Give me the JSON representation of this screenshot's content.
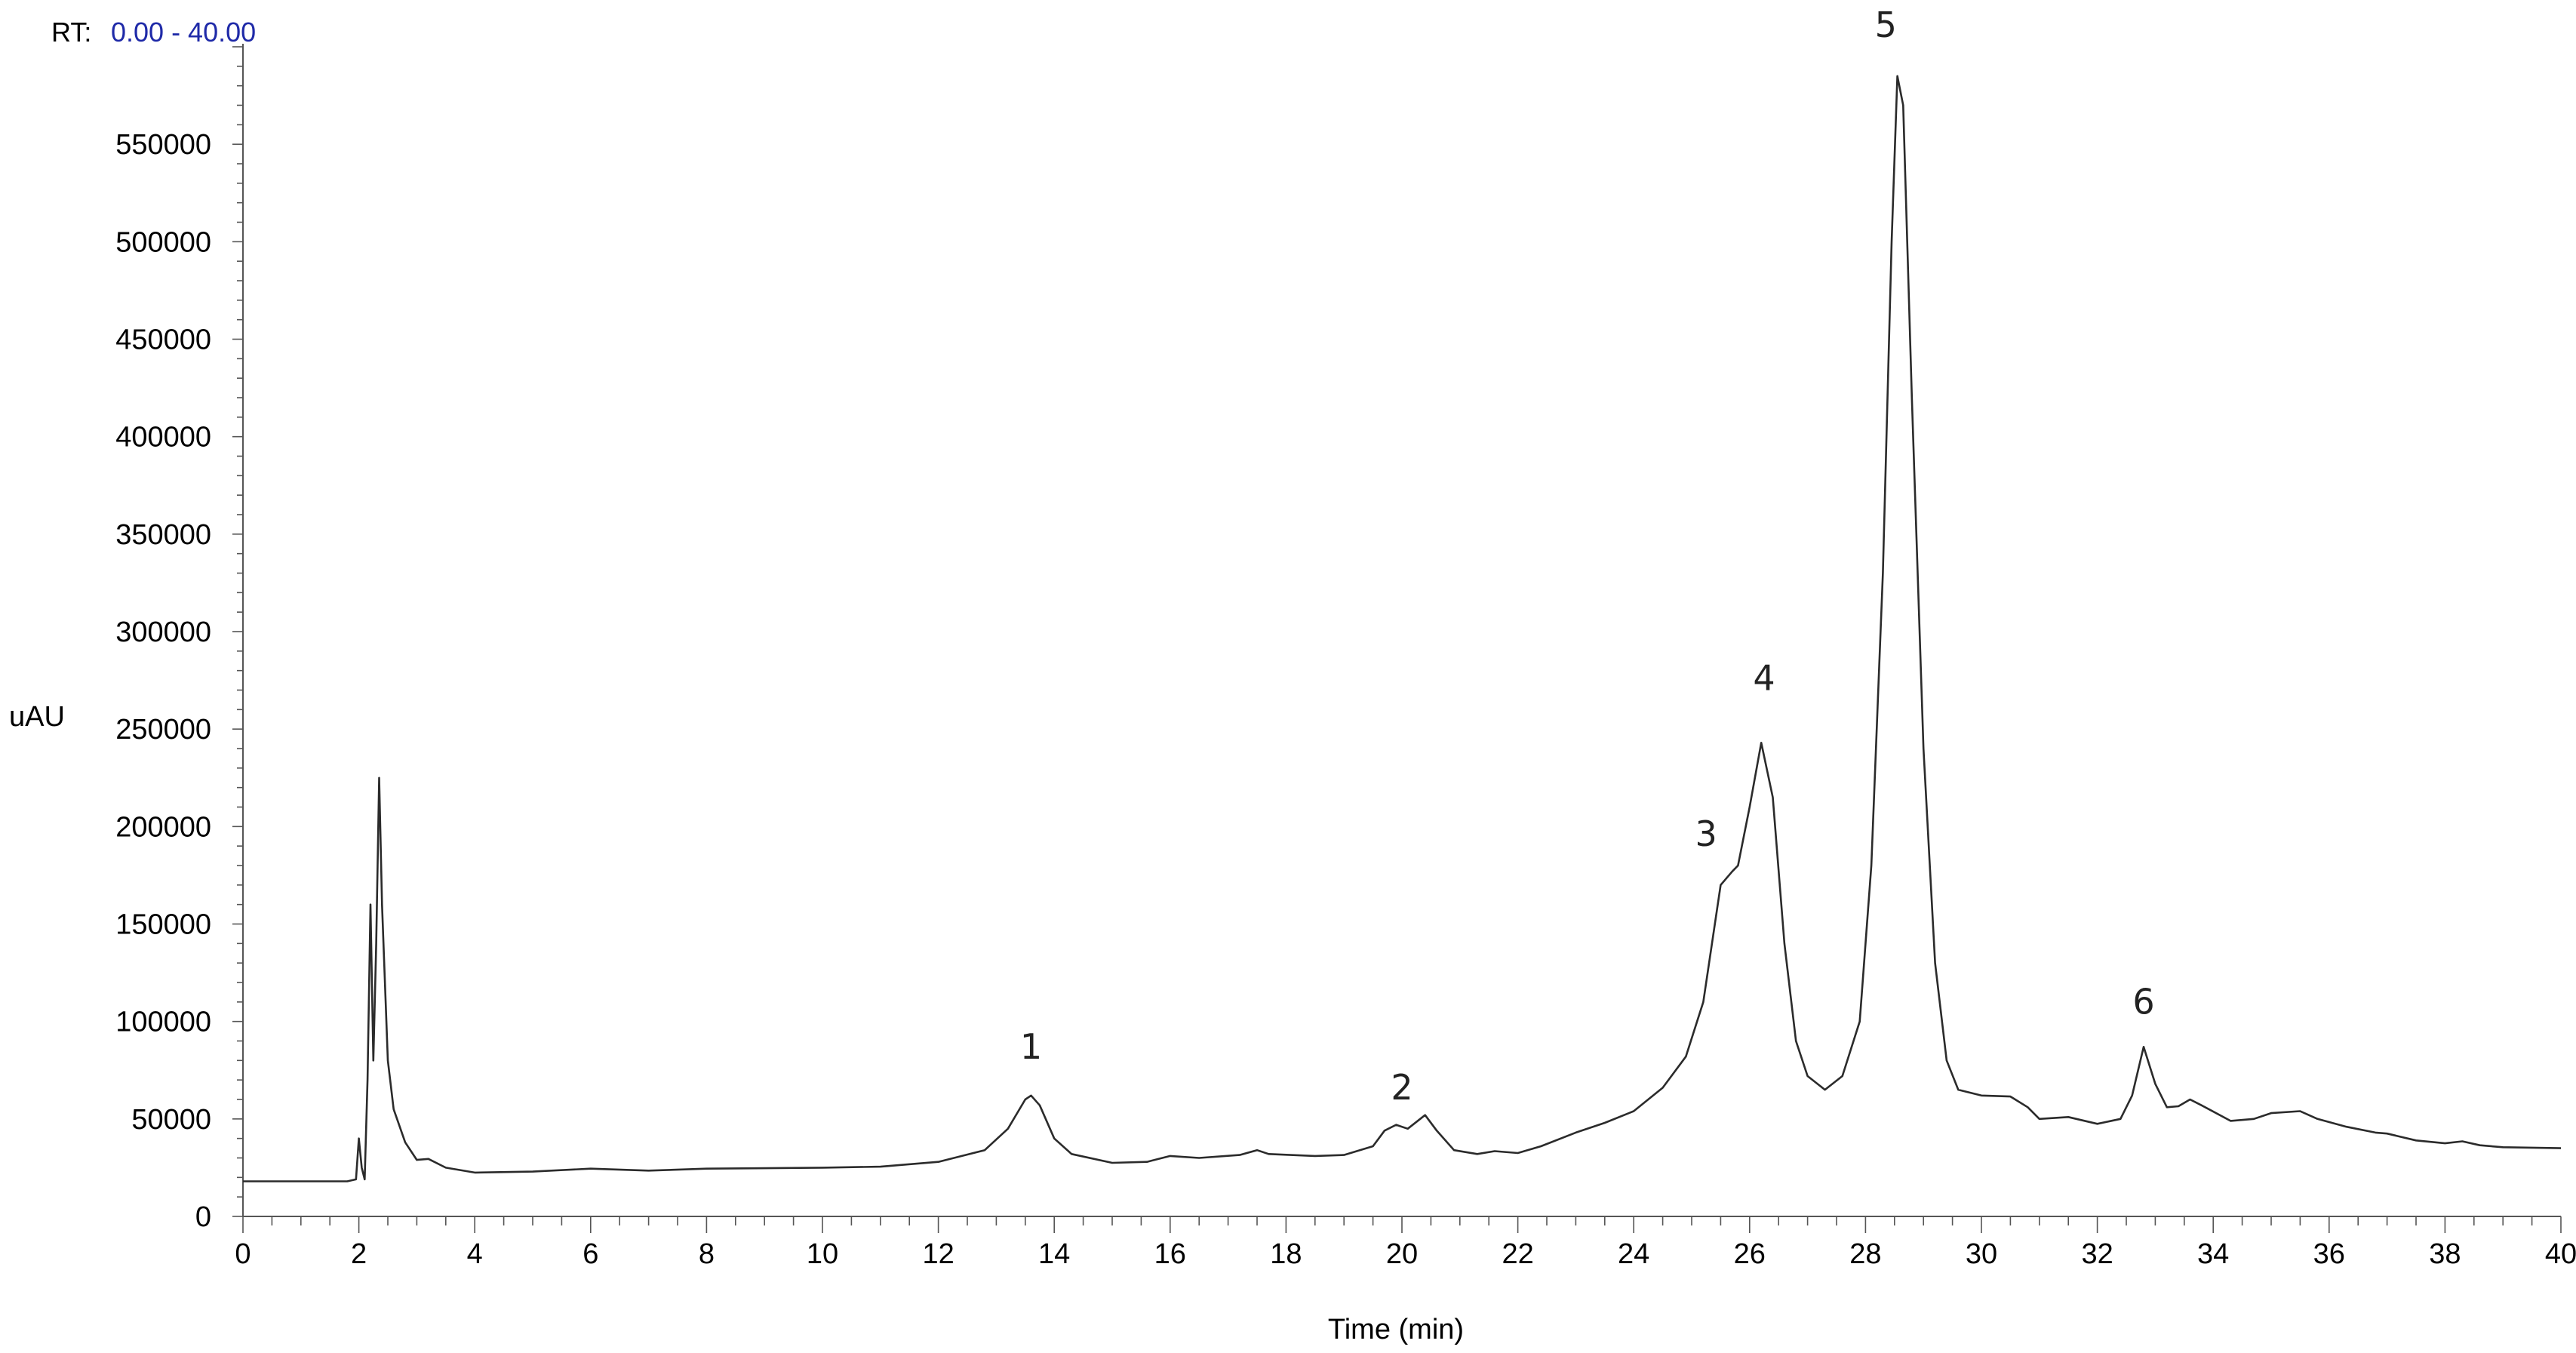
{
  "chart_data": {
    "type": "line",
    "rt_prefix": "RT:",
    "rt_range_text": "0.00 - 40.00",
    "xlabel": "Time (min)",
    "ylabel": "uAU",
    "xlim": [
      0,
      40
    ],
    "ylim": [
      0,
      600000
    ],
    "x_ticks": [
      0,
      2,
      4,
      6,
      8,
      10,
      12,
      14,
      16,
      18,
      20,
      22,
      24,
      26,
      28,
      30,
      32,
      34,
      36,
      38,
      40
    ],
    "y_ticks": [
      0,
      50000,
      100000,
      150000,
      200000,
      250000,
      300000,
      350000,
      400000,
      450000,
      500000,
      550000
    ],
    "grid": false,
    "series": [
      {
        "color": "#2b2b2b",
        "points": [
          [
            0.0,
            18000
          ],
          [
            1.8,
            18000
          ],
          [
            1.95,
            19000
          ],
          [
            2.0,
            40000
          ],
          [
            2.05,
            25000
          ],
          [
            2.1,
            19000
          ],
          [
            2.15,
            70000
          ],
          [
            2.2,
            160000
          ],
          [
            2.25,
            80000
          ],
          [
            2.3,
            140000
          ],
          [
            2.35,
            225000
          ],
          [
            2.4,
            160000
          ],
          [
            2.5,
            80000
          ],
          [
            2.6,
            55000
          ],
          [
            2.8,
            38000
          ],
          [
            3.0,
            29000
          ],
          [
            3.2,
            29500
          ],
          [
            3.5,
            25000
          ],
          [
            4.0,
            22500
          ],
          [
            5.0,
            23000
          ],
          [
            6.0,
            24500
          ],
          [
            7.0,
            23500
          ],
          [
            8.0,
            24500
          ],
          [
            10.0,
            25000
          ],
          [
            11.0,
            25500
          ],
          [
            12.0,
            28000
          ],
          [
            12.8,
            34000
          ],
          [
            13.2,
            45000
          ],
          [
            13.5,
            60000
          ],
          [
            13.6,
            62000
          ],
          [
            13.75,
            57000
          ],
          [
            14.0,
            40000
          ],
          [
            14.3,
            32000
          ],
          [
            15.0,
            27500
          ],
          [
            15.6,
            28000
          ],
          [
            16.0,
            31000
          ],
          [
            16.5,
            30000
          ],
          [
            17.2,
            31500
          ],
          [
            17.5,
            34000
          ],
          [
            17.7,
            32000
          ],
          [
            18.5,
            31000
          ],
          [
            19.0,
            31500
          ],
          [
            19.5,
            36000
          ],
          [
            19.7,
            44000
          ],
          [
            19.9,
            47000
          ],
          [
            20.1,
            45000
          ],
          [
            20.4,
            52000
          ],
          [
            20.6,
            44000
          ],
          [
            20.9,
            34000
          ],
          [
            21.3,
            32000
          ],
          [
            21.6,
            33500
          ],
          [
            22.0,
            32500
          ],
          [
            22.4,
            36000
          ],
          [
            23.0,
            43000
          ],
          [
            23.5,
            48000
          ],
          [
            24.0,
            54000
          ],
          [
            24.5,
            66000
          ],
          [
            24.9,
            82000
          ],
          [
            25.2,
            110000
          ],
          [
            25.5,
            170000
          ],
          [
            25.7,
            177000
          ],
          [
            25.8,
            180000
          ],
          [
            26.0,
            210000
          ],
          [
            26.2,
            243000
          ],
          [
            26.4,
            215000
          ],
          [
            26.6,
            140000
          ],
          [
            26.8,
            90000
          ],
          [
            27.0,
            72000
          ],
          [
            27.3,
            65000
          ],
          [
            27.6,
            72000
          ],
          [
            27.9,
            100000
          ],
          [
            28.1,
            180000
          ],
          [
            28.3,
            330000
          ],
          [
            28.45,
            500000
          ],
          [
            28.55,
            585000
          ],
          [
            28.65,
            570000
          ],
          [
            28.8,
            420000
          ],
          [
            29.0,
            240000
          ],
          [
            29.2,
            130000
          ],
          [
            29.4,
            80000
          ],
          [
            29.6,
            65000
          ],
          [
            30.0,
            62000
          ],
          [
            30.5,
            61500
          ],
          [
            30.8,
            56000
          ],
          [
            31.0,
            50000
          ],
          [
            31.5,
            51000
          ],
          [
            32.0,
            47500
          ],
          [
            32.4,
            50000
          ],
          [
            32.6,
            62000
          ],
          [
            32.8,
            87000
          ],
          [
            33.0,
            68000
          ],
          [
            33.2,
            56000
          ],
          [
            33.4,
            56500
          ],
          [
            33.6,
            60000
          ],
          [
            33.8,
            57000
          ],
          [
            34.3,
            49000
          ],
          [
            34.7,
            50000
          ],
          [
            35.0,
            53000
          ],
          [
            35.5,
            54000
          ],
          [
            35.8,
            50000
          ],
          [
            36.3,
            46000
          ],
          [
            36.8,
            43000
          ],
          [
            37.0,
            42500
          ],
          [
            37.5,
            39000
          ],
          [
            38.0,
            37500
          ],
          [
            38.3,
            38500
          ],
          [
            38.6,
            36500
          ],
          [
            39.0,
            35500
          ],
          [
            40.0,
            35000
          ]
        ]
      }
    ],
    "annotations": [
      {
        "label": "1",
        "x": 13.6,
        "y": 81000
      },
      {
        "label": "2",
        "x": 20.0,
        "y": 60000
      },
      {
        "label": "3",
        "x": 25.25,
        "y": 190000
      },
      {
        "label": "4",
        "x": 26.25,
        "y": 270000
      },
      {
        "label": "5",
        "x": 28.35,
        "y": 605000
      },
      {
        "label": "6",
        "x": 32.8,
        "y": 104000
      }
    ]
  }
}
